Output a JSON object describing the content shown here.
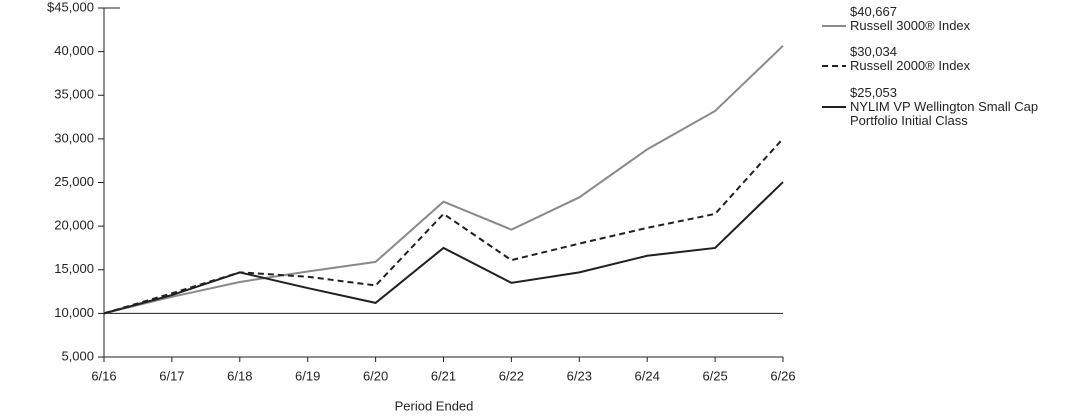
{
  "chart_data": {
    "type": "line",
    "x_label": "Period Ended",
    "categories": [
      "6/16",
      "6/17",
      "6/18",
      "6/19",
      "6/20",
      "6/21",
      "6/22",
      "6/23",
      "6/24",
      "6/25",
      "6/26"
    ],
    "series": [
      {
        "name": "Russell 3000® Index",
        "end_label": "$40,667",
        "color": "#8a8a8a",
        "line_style": "solid",
        "values": [
          10000,
          11900,
          13600,
          14800,
          15900,
          22800,
          19600,
          23300,
          28800,
          33200,
          40667
        ]
      },
      {
        "name": "Russell 2000® Index",
        "end_label": "$30,034",
        "color": "#231f20",
        "line_style": "dashed",
        "values": [
          10000,
          12300,
          14700,
          14200,
          13200,
          21400,
          16100,
          18000,
          19800,
          21400,
          30034
        ]
      },
      {
        "name": "NYLIM VP Wellington Small Cap Portfolio Initial Class",
        "end_label": "$25,053",
        "color": "#231f20",
        "line_style": "solid",
        "values": [
          10000,
          12100,
          14700,
          12900,
          11200,
          17500,
          13500,
          14700,
          16600,
          17500,
          25053
        ]
      }
    ],
    "reference_line": 10000,
    "ylim": [
      5000,
      45000
    ],
    "yticks": [
      {
        "value": 5000,
        "label": "5,000"
      },
      {
        "value": 10000,
        "label": "10,000"
      },
      {
        "value": 15000,
        "label": "15,000"
      },
      {
        "value": 20000,
        "label": "20,000"
      },
      {
        "value": 25000,
        "label": "25,000"
      },
      {
        "value": 30000,
        "label": "30,000"
      },
      {
        "value": 35000,
        "label": "35,000"
      },
      {
        "value": 40000,
        "label": "40,000"
      },
      {
        "value": 45000,
        "label": "$45,000"
      }
    ]
  }
}
